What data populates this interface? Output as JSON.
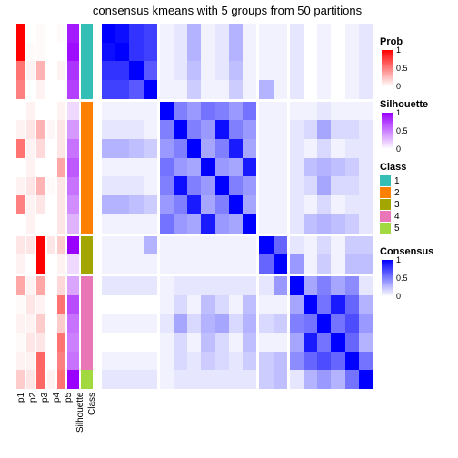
{
  "title": "consensus kmeans with 5 groups from 50 partitions",
  "n": 19,
  "annotation_columns": [
    {
      "key": "p1",
      "palette": "prob",
      "width": 10
    },
    {
      "key": "p2",
      "palette": "prob",
      "width": 10
    },
    {
      "key": "p3",
      "palette": "prob",
      "width": 10
    },
    {
      "key": "p4",
      "palette": "prob",
      "width": 10
    },
    {
      "key": "p5",
      "palette": "prob",
      "width": 10
    },
    {
      "key": "silhouette",
      "palette": "silhouette",
      "width": 14
    },
    {
      "key": "class",
      "palette": "class",
      "width": 14
    }
  ],
  "rows": [
    {
      "p1": 1.0,
      "p2": 0.0,
      "p3": 0.02,
      "p4": 0.0,
      "p5": 0.02,
      "silhouette": 0.9,
      "class": 1
    },
    {
      "p1": 1.0,
      "p2": 0.02,
      "p3": 0.02,
      "p4": 0.0,
      "p5": 0.0,
      "silhouette": 0.95,
      "class": 1
    },
    {
      "p1": 0.55,
      "p2": 0.05,
      "p3": 0.3,
      "p4": 0.0,
      "p5": 0.05,
      "silhouette": 0.8,
      "class": 1
    },
    {
      "p1": 0.5,
      "p2": 0.0,
      "p3": 0.05,
      "p4": 0.0,
      "p5": 0.0,
      "silhouette": 0.75,
      "class": 1
    },
    {
      "p1": 0.0,
      "p2": 0.05,
      "p3": 0.0,
      "p4": 0.0,
      "p5": 0.05,
      "silhouette": 0.15,
      "class": 2
    },
    {
      "p1": 0.05,
      "p2": 0.1,
      "p3": 0.3,
      "p4": 0.03,
      "p5": 0.1,
      "silhouette": 0.4,
      "class": 2
    },
    {
      "p1": 0.55,
      "p2": 0.05,
      "p3": 0.15,
      "p4": 0.0,
      "p5": 0.1,
      "silhouette": 0.55,
      "class": 2
    },
    {
      "p1": 0.0,
      "p2": 0.05,
      "p3": 0.0,
      "p4": 0.0,
      "p5": 0.35,
      "silhouette": 0.65,
      "class": 2
    },
    {
      "p1": 0.05,
      "p2": 0.1,
      "p3": 0.3,
      "p4": 0.02,
      "p5": 0.1,
      "silhouette": 0.55,
      "class": 2
    },
    {
      "p1": 0.5,
      "p2": 0.05,
      "p3": 0.1,
      "p4": 0.0,
      "p5": 0.1,
      "silhouette": 0.45,
      "class": 2
    },
    {
      "p1": 0.0,
      "p2": 0.05,
      "p3": 0.0,
      "p4": 0.0,
      "p5": 0.1,
      "silhouette": 0.3,
      "class": 2
    },
    {
      "p1": 0.1,
      "p2": 0.1,
      "p3": 1.0,
      "p4": 0.1,
      "p5": 0.2,
      "silhouette": 1.0,
      "class": 3
    },
    {
      "p1": 0.05,
      "p2": 0.0,
      "p3": 1.0,
      "p4": 0.0,
      "p5": 0.05,
      "silhouette": 0.15,
      "class": 3
    },
    {
      "p1": 0.35,
      "p2": 0.05,
      "p3": 0.35,
      "p4": 0.0,
      "p5": 0.15,
      "silhouette": 0.35,
      "class": 4
    },
    {
      "p1": 0.02,
      "p2": 0.1,
      "p3": 0.05,
      "p4": 0.0,
      "p5": 0.55,
      "silhouette": 0.7,
      "class": 4
    },
    {
      "p1": 0.05,
      "p2": 0.05,
      "p3": 0.2,
      "p4": 0.0,
      "p5": 0.2,
      "silhouette": 0.55,
      "class": 4
    },
    {
      "p1": 0.02,
      "p2": 0.1,
      "p3": 0.1,
      "p4": 0.0,
      "p5": 0.55,
      "silhouette": 0.5,
      "class": 4
    },
    {
      "p1": 0.05,
      "p2": 0.05,
      "p3": 0.6,
      "p4": 0.0,
      "p5": 0.5,
      "silhouette": 0.55,
      "class": 4
    },
    {
      "p1": 0.2,
      "p2": 0.1,
      "p3": 0.6,
      "p4": 0.05,
      "p5": 0.55,
      "silhouette": 1.0,
      "class": 5
    }
  ],
  "consensus": [
    [
      1.0,
      0.95,
      0.8,
      0.75,
      0.05,
      0.1,
      0.3,
      0.05,
      0.1,
      0.3,
      0.05,
      0.05,
      0.05,
      0.1,
      0.0,
      0.05,
      0.0,
      0.05,
      0.1
    ],
    [
      0.95,
      1.0,
      0.8,
      0.75,
      0.05,
      0.1,
      0.3,
      0.05,
      0.1,
      0.3,
      0.05,
      0.05,
      0.05,
      0.1,
      0.0,
      0.05,
      0.0,
      0.05,
      0.1
    ],
    [
      0.8,
      0.8,
      1.0,
      0.65,
      0.05,
      0.1,
      0.25,
      0.05,
      0.1,
      0.25,
      0.05,
      0.05,
      0.05,
      0.1,
      0.0,
      0.05,
      0.0,
      0.05,
      0.1
    ],
    [
      0.75,
      0.75,
      0.65,
      1.0,
      0.05,
      0.05,
      0.2,
      0.05,
      0.05,
      0.2,
      0.05,
      0.3,
      0.05,
      0.1,
      0.0,
      0.05,
      0.0,
      0.05,
      0.1
    ],
    [
      0.05,
      0.05,
      0.05,
      0.05,
      1.0,
      0.5,
      0.4,
      0.55,
      0.5,
      0.4,
      0.55,
      0.05,
      0.05,
      0.05,
      0.05,
      0.1,
      0.05,
      0.05,
      0.05
    ],
    [
      0.1,
      0.1,
      0.1,
      0.05,
      0.5,
      1.0,
      0.5,
      0.4,
      0.95,
      0.5,
      0.4,
      0.05,
      0.05,
      0.1,
      0.15,
      0.35,
      0.15,
      0.15,
      0.1
    ],
    [
      0.3,
      0.3,
      0.25,
      0.2,
      0.4,
      0.5,
      1.0,
      0.35,
      0.5,
      0.9,
      0.35,
      0.05,
      0.05,
      0.1,
      0.05,
      0.15,
      0.05,
      0.1,
      0.1
    ],
    [
      0.05,
      0.05,
      0.05,
      0.05,
      0.55,
      0.4,
      0.35,
      1.0,
      0.4,
      0.35,
      0.9,
      0.05,
      0.05,
      0.1,
      0.25,
      0.3,
      0.25,
      0.2,
      0.1
    ],
    [
      0.1,
      0.1,
      0.1,
      0.05,
      0.5,
      0.95,
      0.5,
      0.4,
      1.0,
      0.5,
      0.4,
      0.05,
      0.05,
      0.1,
      0.15,
      0.35,
      0.15,
      0.15,
      0.1
    ],
    [
      0.3,
      0.3,
      0.25,
      0.2,
      0.4,
      0.5,
      0.9,
      0.35,
      0.5,
      1.0,
      0.35,
      0.05,
      0.05,
      0.1,
      0.05,
      0.15,
      0.05,
      0.1,
      0.1
    ],
    [
      0.05,
      0.05,
      0.05,
      0.05,
      0.55,
      0.4,
      0.35,
      0.9,
      0.4,
      0.35,
      1.0,
      0.05,
      0.05,
      0.1,
      0.25,
      0.3,
      0.25,
      0.2,
      0.1
    ],
    [
      0.05,
      0.05,
      0.05,
      0.3,
      0.05,
      0.05,
      0.05,
      0.05,
      0.05,
      0.05,
      0.05,
      1.0,
      0.6,
      0.1,
      0.05,
      0.15,
      0.05,
      0.2,
      0.2
    ],
    [
      0.05,
      0.05,
      0.05,
      0.05,
      0.05,
      0.05,
      0.05,
      0.05,
      0.05,
      0.05,
      0.05,
      0.6,
      1.0,
      0.4,
      0.05,
      0.2,
      0.05,
      0.25,
      0.25
    ],
    [
      0.1,
      0.1,
      0.1,
      0.1,
      0.05,
      0.1,
      0.1,
      0.1,
      0.1,
      0.1,
      0.1,
      0.1,
      0.4,
      1.0,
      0.35,
      0.5,
      0.35,
      0.45,
      0.1
    ],
    [
      0.0,
      0.0,
      0.0,
      0.0,
      0.05,
      0.15,
      0.05,
      0.25,
      0.15,
      0.05,
      0.25,
      0.05,
      0.05,
      0.35,
      1.0,
      0.55,
      0.9,
      0.6,
      0.3
    ],
    [
      0.05,
      0.05,
      0.05,
      0.05,
      0.1,
      0.35,
      0.15,
      0.3,
      0.35,
      0.15,
      0.3,
      0.15,
      0.2,
      0.5,
      0.55,
      1.0,
      0.55,
      0.7,
      0.4
    ],
    [
      0.0,
      0.0,
      0.0,
      0.0,
      0.05,
      0.15,
      0.05,
      0.25,
      0.15,
      0.05,
      0.25,
      0.05,
      0.05,
      0.35,
      0.9,
      0.55,
      1.0,
      0.6,
      0.3
    ],
    [
      0.05,
      0.05,
      0.05,
      0.05,
      0.05,
      0.15,
      0.1,
      0.2,
      0.15,
      0.1,
      0.2,
      0.2,
      0.25,
      0.45,
      0.6,
      0.7,
      0.6,
      1.0,
      0.55
    ],
    [
      0.1,
      0.1,
      0.1,
      0.1,
      0.05,
      0.1,
      0.1,
      0.1,
      0.1,
      0.1,
      0.1,
      0.2,
      0.25,
      0.1,
      0.3,
      0.4,
      0.3,
      0.55,
      1.0
    ]
  ],
  "gaps_after": [
    3,
    10,
    12
  ],
  "palettes": {
    "prob": {
      "low": "#ffffff",
      "high": "#ff0000"
    },
    "silhouette": {
      "low": "#ffffff",
      "high": "#9900ff"
    },
    "consensus": {
      "low": "#ffffff",
      "high": "#0000ff"
    },
    "class": {
      "1": "#33beb6",
      "2": "#fd8003",
      "3": "#a3a500",
      "4": "#e977b8",
      "5": "#a3d940"
    }
  },
  "legends": [
    {
      "title": "Prob",
      "type": "gradient",
      "palette": "prob",
      "ticks": [
        {
          "v": 1,
          "label": "1"
        },
        {
          "v": 0.5,
          "label": "0.5"
        },
        {
          "v": 0,
          "label": "0"
        }
      ]
    },
    {
      "title": "Silhouette",
      "type": "gradient",
      "palette": "silhouette",
      "ticks": [
        {
          "v": 1,
          "label": "1"
        },
        {
          "v": 0.5,
          "label": "0.5"
        },
        {
          "v": 0,
          "label": "0"
        }
      ]
    },
    {
      "title": "Class",
      "type": "discrete",
      "items": [
        {
          "c": "1",
          "label": "1"
        },
        {
          "c": "2",
          "label": "2"
        },
        {
          "c": "3",
          "label": "3"
        },
        {
          "c": "4",
          "label": "4"
        },
        {
          "c": "5",
          "label": "5"
        }
      ]
    },
    {
      "title": "Consensus",
      "type": "gradient",
      "palette": "consensus",
      "ticks": [
        {
          "v": 1,
          "label": "1"
        },
        {
          "v": 0.5,
          "label": "0.5"
        },
        {
          "v": 0,
          "label": "0"
        }
      ]
    }
  ],
  "xlabels": [
    "p1",
    "p2",
    "p3",
    "p4",
    "p5",
    "Silhouette",
    "Class"
  ]
}
